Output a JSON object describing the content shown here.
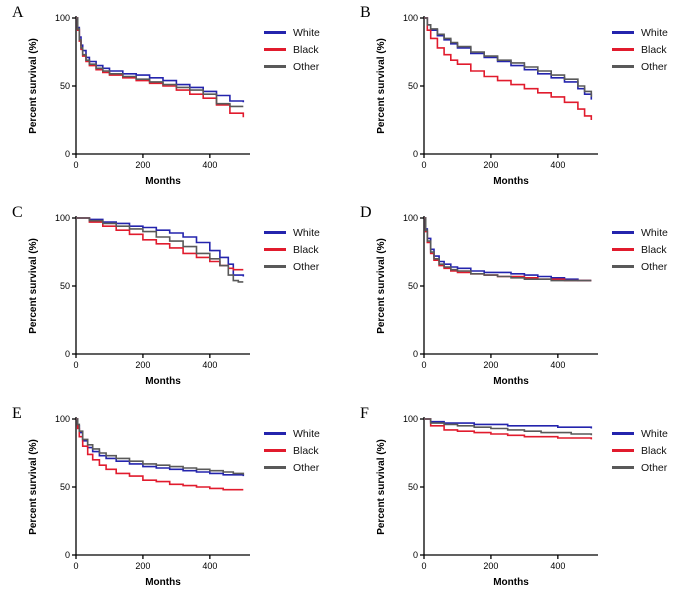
{
  "figure": {
    "xlabel": "Months",
    "ylabel": "Percent survival (%)",
    "legend_labels": [
      "White",
      "Black",
      "Other"
    ],
    "colors": {
      "White": "#2424ad",
      "Black": "#e11b2d",
      "Other": "#595959"
    }
  },
  "chart_data": [
    {
      "panel": "A",
      "type": "line",
      "step": true,
      "xlabel": "Months",
      "ylabel": "Percent survival (%)",
      "xlim": [
        0,
        520
      ],
      "ylim": [
        0,
        100
      ],
      "xticks": [
        0,
        200,
        400
      ],
      "yticks": [
        0,
        50,
        100
      ],
      "legend": [
        "White",
        "Black",
        "Other"
      ],
      "legend_position": "right",
      "series": [
        {
          "name": "White",
          "x": [
            0,
            5,
            10,
            15,
            20,
            30,
            40,
            60,
            80,
            100,
            140,
            180,
            220,
            260,
            300,
            340,
            380,
            420,
            460,
            500
          ],
          "y": [
            100,
            93,
            86,
            80,
            76,
            71,
            68,
            65,
            63,
            61,
            59,
            58,
            56,
            54,
            51,
            49,
            46,
            43,
            39,
            38
          ]
        },
        {
          "name": "Black",
          "x": [
            0,
            5,
            10,
            15,
            20,
            30,
            40,
            60,
            80,
            100,
            140,
            180,
            220,
            260,
            300,
            340,
            380,
            420,
            460,
            500
          ],
          "y": [
            100,
            91,
            83,
            77,
            72,
            68,
            65,
            62,
            60,
            58,
            56,
            54,
            52,
            50,
            47,
            44,
            41,
            36,
            30,
            27
          ]
        },
        {
          "name": "Other",
          "x": [
            0,
            5,
            10,
            15,
            20,
            30,
            40,
            60,
            80,
            100,
            140,
            180,
            220,
            260,
            300,
            340,
            380,
            420,
            460,
            500
          ],
          "y": [
            100,
            92,
            84,
            78,
            73,
            69,
            66,
            63,
            61,
            59,
            57,
            55,
            53,
            51,
            49,
            47,
            44,
            37,
            35,
            35
          ]
        }
      ]
    },
    {
      "panel": "B",
      "type": "line",
      "step": true,
      "xlabel": "Months",
      "ylabel": "Percent survival (%)",
      "xlim": [
        0,
        520
      ],
      "ylim": [
        0,
        100
      ],
      "xticks": [
        0,
        200,
        400
      ],
      "yticks": [
        0,
        50,
        100
      ],
      "legend": [
        "White",
        "Black",
        "Other"
      ],
      "legend_position": "right",
      "series": [
        {
          "name": "White",
          "x": [
            0,
            10,
            20,
            40,
            60,
            80,
            100,
            140,
            180,
            220,
            260,
            300,
            340,
            380,
            420,
            460,
            480,
            500
          ],
          "y": [
            100,
            95,
            91,
            87,
            84,
            81,
            78,
            74,
            71,
            68,
            65,
            62,
            59,
            56,
            53,
            48,
            44,
            40
          ]
        },
        {
          "name": "Black",
          "x": [
            0,
            10,
            20,
            40,
            60,
            80,
            100,
            140,
            180,
            220,
            260,
            300,
            340,
            380,
            420,
            460,
            480,
            500
          ],
          "y": [
            100,
            91,
            85,
            78,
            73,
            69,
            66,
            61,
            57,
            54,
            51,
            48,
            45,
            42,
            38,
            33,
            28,
            25
          ]
        },
        {
          "name": "Other",
          "x": [
            0,
            10,
            20,
            40,
            60,
            80,
            100,
            140,
            180,
            220,
            260,
            300,
            340,
            380,
            420,
            460,
            480,
            500
          ],
          "y": [
            100,
            95,
            92,
            88,
            85,
            82,
            79,
            75,
            72,
            69,
            67,
            64,
            61,
            58,
            55,
            50,
            46,
            42
          ]
        }
      ]
    },
    {
      "panel": "C",
      "type": "line",
      "step": true,
      "xlabel": "Months",
      "ylabel": "Percent survival (%)",
      "xlim": [
        0,
        520
      ],
      "ylim": [
        0,
        100
      ],
      "xticks": [
        0,
        200,
        400
      ],
      "yticks": [
        0,
        50,
        100
      ],
      "legend": [
        "White",
        "Black",
        "Other"
      ],
      "legend_position": "right",
      "series": [
        {
          "name": "White",
          "x": [
            0,
            40,
            80,
            120,
            160,
            200,
            240,
            280,
            320,
            360,
            400,
            430,
            455,
            470,
            485,
            500
          ],
          "y": [
            100,
            99,
            97,
            96,
            94,
            93,
            91,
            89,
            86,
            82,
            76,
            71,
            66,
            58,
            58,
            57
          ]
        },
        {
          "name": "Black",
          "x": [
            0,
            40,
            80,
            120,
            160,
            200,
            240,
            280,
            320,
            360,
            400,
            430,
            455,
            470,
            485,
            500
          ],
          "y": [
            100,
            97,
            94,
            91,
            88,
            84,
            81,
            78,
            74,
            71,
            68,
            65,
            63,
            62,
            62,
            62
          ]
        },
        {
          "name": "Other",
          "x": [
            0,
            40,
            80,
            120,
            160,
            200,
            240,
            280,
            320,
            360,
            400,
            430,
            455,
            470,
            485,
            500
          ],
          "y": [
            100,
            98,
            96,
            94,
            92,
            90,
            86,
            83,
            79,
            74,
            70,
            65,
            58,
            54,
            53,
            53
          ]
        }
      ]
    },
    {
      "panel": "D",
      "type": "line",
      "step": true,
      "xlabel": "Months",
      "ylabel": "Percent survival (%)",
      "xlim": [
        0,
        520
      ],
      "ylim": [
        0,
        100
      ],
      "xticks": [
        0,
        200,
        400
      ],
      "yticks": [
        0,
        50,
        100
      ],
      "legend": [
        "White",
        "Black",
        "Other"
      ],
      "legend_position": "right",
      "series": [
        {
          "name": "White",
          "x": [
            0,
            5,
            10,
            20,
            30,
            45,
            60,
            80,
            100,
            140,
            180,
            220,
            260,
            300,
            340,
            380,
            420,
            460,
            500
          ],
          "y": [
            100,
            92,
            85,
            77,
            72,
            68,
            66,
            64,
            63,
            61,
            60,
            60,
            59,
            58,
            57,
            56,
            55,
            54,
            54
          ]
        },
        {
          "name": "Black",
          "x": [
            0,
            5,
            10,
            20,
            30,
            45,
            60,
            80,
            100,
            140,
            180,
            220,
            260,
            300,
            340,
            380,
            420,
            460,
            500
          ],
          "y": [
            100,
            90,
            82,
            74,
            69,
            65,
            63,
            61,
            60,
            59,
            58,
            57,
            57,
            56,
            55,
            55,
            54,
            54,
            54
          ]
        },
        {
          "name": "Other",
          "x": [
            0,
            5,
            10,
            20,
            30,
            45,
            60,
            80,
            100,
            140,
            180,
            220,
            260,
            300,
            340,
            380,
            420,
            460,
            500
          ],
          "y": [
            100,
            91,
            83,
            75,
            70,
            66,
            64,
            62,
            61,
            59,
            58,
            57,
            56,
            55,
            55,
            54,
            54,
            54,
            54
          ]
        }
      ]
    },
    {
      "panel": "E",
      "type": "line",
      "step": true,
      "xlabel": "Months",
      "ylabel": "Percent survival (%)",
      "xlim": [
        0,
        520
      ],
      "ylim": [
        0,
        100
      ],
      "xticks": [
        0,
        200,
        400
      ],
      "yticks": [
        0,
        50,
        100
      ],
      "legend": [
        "White",
        "Black",
        "Other"
      ],
      "legend_position": "right",
      "series": [
        {
          "name": "White",
          "x": [
            0,
            5,
            10,
            20,
            35,
            50,
            70,
            90,
            120,
            160,
            200,
            240,
            280,
            320,
            360,
            400,
            440,
            470,
            500
          ],
          "y": [
            100,
            95,
            90,
            84,
            79,
            76,
            73,
            71,
            69,
            67,
            65,
            64,
            63,
            62,
            61,
            60,
            59,
            59,
            58
          ]
        },
        {
          "name": "Black",
          "x": [
            0,
            5,
            10,
            20,
            35,
            50,
            70,
            90,
            120,
            160,
            200,
            240,
            280,
            320,
            360,
            400,
            440,
            470,
            500
          ],
          "y": [
            100,
            93,
            87,
            80,
            74,
            70,
            66,
            63,
            60,
            58,
            55,
            54,
            52,
            51,
            50,
            49,
            48,
            48,
            48
          ]
        },
        {
          "name": "Other",
          "x": [
            0,
            5,
            10,
            20,
            35,
            50,
            70,
            90,
            120,
            160,
            200,
            240,
            280,
            320,
            360,
            400,
            440,
            470,
            500
          ],
          "y": [
            100,
            96,
            91,
            85,
            81,
            78,
            75,
            73,
            71,
            69,
            67,
            66,
            65,
            64,
            63,
            62,
            61,
            60,
            59
          ]
        }
      ]
    },
    {
      "panel": "F",
      "type": "line",
      "step": true,
      "xlabel": "Months",
      "ylabel": "Percent survival (%)",
      "xlim": [
        0,
        520
      ],
      "ylim": [
        0,
        100
      ],
      "xticks": [
        0,
        200,
        400
      ],
      "yticks": [
        0,
        50,
        100
      ],
      "legend": [
        "White",
        "Black",
        "Other"
      ],
      "legend_position": "right",
      "series": [
        {
          "name": "White",
          "x": [
            0,
            20,
            60,
            100,
            150,
            200,
            250,
            300,
            350,
            400,
            440,
            470,
            500
          ],
          "y": [
            100,
            98,
            97,
            97,
            96,
            96,
            95,
            95,
            95,
            94,
            94,
            94,
            93
          ]
        },
        {
          "name": "Black",
          "x": [
            0,
            20,
            60,
            100,
            150,
            200,
            250,
            300,
            350,
            400,
            440,
            470,
            500
          ],
          "y": [
            100,
            95,
            92,
            91,
            90,
            89,
            88,
            87,
            87,
            86,
            86,
            86,
            85
          ]
        },
        {
          "name": "Other",
          "x": [
            0,
            20,
            60,
            100,
            150,
            200,
            250,
            300,
            350,
            400,
            440,
            470,
            500
          ],
          "y": [
            100,
            97,
            96,
            95,
            94,
            93,
            92,
            91,
            90,
            90,
            89,
            89,
            88
          ]
        }
      ]
    }
  ]
}
